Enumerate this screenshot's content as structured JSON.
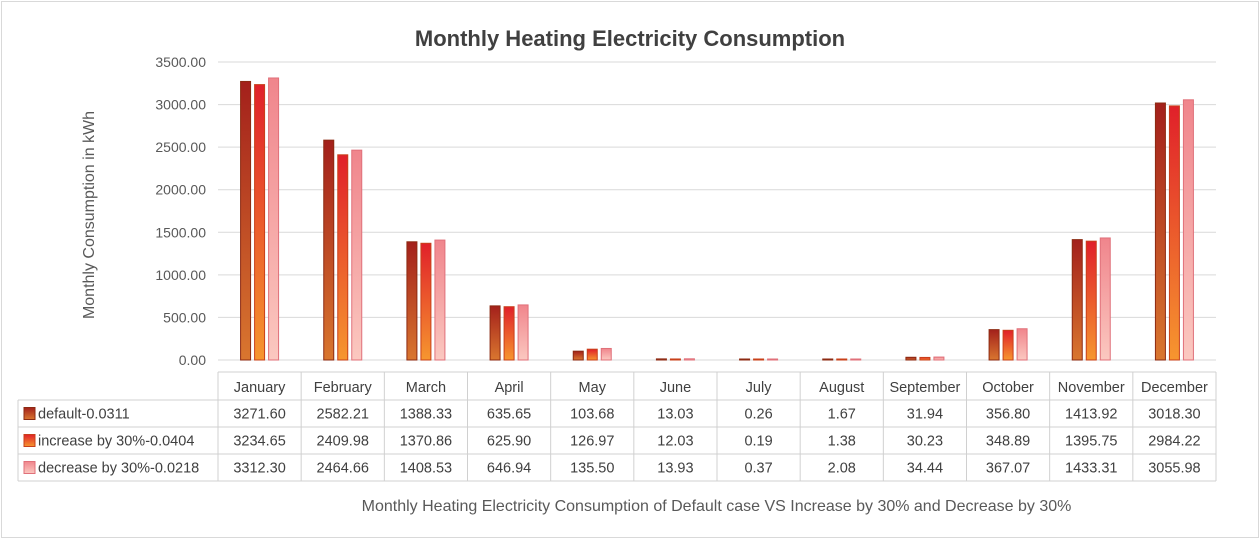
{
  "chart_data": {
    "type": "bar",
    "title": "Monthly Heating Electricity Consumption",
    "ylabel": "Monthly Consumption in kWh",
    "xlabel": "Monthly Heating Electricity Consumption of Default case VS Increase by 30% and Decrease by 30%",
    "ylim": [
      0,
      3500
    ],
    "yticks": [
      "3500.00",
      "3000.00",
      "2500.00",
      "2000.00",
      "1500.00",
      "1000.00",
      "500.00",
      "0.00"
    ],
    "grid": true,
    "legend": "data-table",
    "categories": [
      "January",
      "February",
      "March",
      "April",
      "May",
      "June",
      "July",
      "August",
      "September",
      "October",
      "November",
      "December"
    ],
    "series": [
      {
        "name": "default-0.0311",
        "color": "#c0522a",
        "values": [
          3271.6,
          2582.21,
          1388.33,
          635.65,
          103.68,
          13.03,
          0.26,
          1.67,
          31.94,
          356.8,
          1413.92,
          3018.3
        ],
        "labels": [
          "3271.60",
          "2582.21",
          "1388.33",
          "635.65",
          "103.68",
          "13.03",
          "0.26",
          "1.67",
          "31.94",
          "356.80",
          "1413.92",
          "3018.30"
        ]
      },
      {
        "name": "increase by 30%-0.0404",
        "color": "#f0822e",
        "values": [
          3234.65,
          2409.98,
          1370.86,
          625.9,
          126.97,
          12.03,
          0.19,
          1.38,
          30.23,
          348.89,
          1395.75,
          2984.22
        ],
        "labels": [
          "3234.65",
          "2409.98",
          "1370.86",
          "625.90",
          "126.97",
          "12.03",
          "0.19",
          "1.38",
          "30.23",
          "348.89",
          "1395.75",
          "2984.22"
        ]
      },
      {
        "name": "decrease by 30%-0.0218",
        "color": "#f4a8a6",
        "values": [
          3312.3,
          2464.66,
          1408.53,
          646.94,
          135.5,
          13.93,
          0.37,
          2.08,
          34.44,
          367.07,
          1433.31,
          3055.98
        ],
        "labels": [
          "3312.30",
          "2464.66",
          "1408.53",
          "646.94",
          "135.50",
          "13.93",
          "0.37",
          "2.08",
          "34.44",
          "367.07",
          "1433.31",
          "3055.98"
        ]
      }
    ]
  }
}
